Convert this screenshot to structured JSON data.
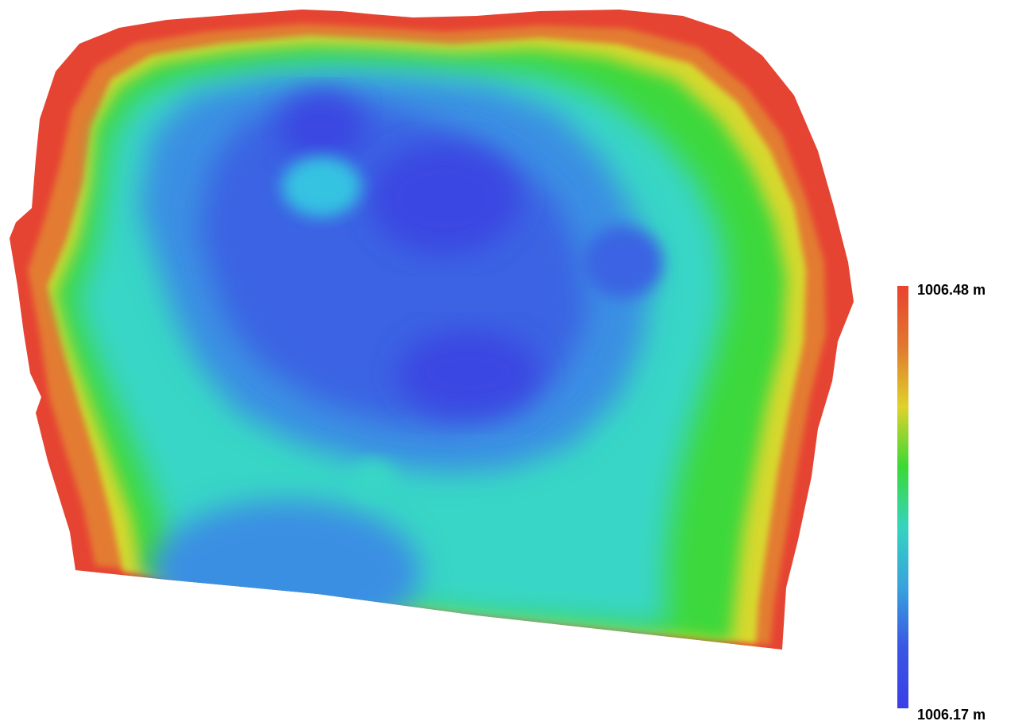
{
  "legend": {
    "max_label": "1006.48 m",
    "min_label": "1006.17 m",
    "colors": [
      "#e8432e",
      "#e1782f",
      "#dfd22a",
      "#3ad936",
      "#35d3c0",
      "#38a2dd",
      "#3a56e4",
      "#3b3fe6"
    ]
  },
  "map": {
    "ramp": {
      "red": "#e64433",
      "orange": "#e37b33",
      "yellow": "#d8d82e",
      "green": "#3ed83a",
      "teal": "#37d6c6",
      "cyan": "#34c3e2",
      "sky": "#3b8fe3",
      "blue": "#3b63e3",
      "deep": "#3b47e2"
    }
  }
}
